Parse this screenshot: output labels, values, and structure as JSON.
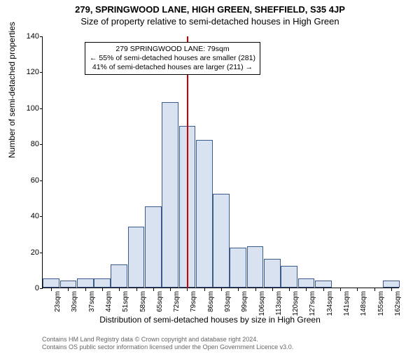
{
  "title_main": "279, SPRINGWOOD LANE, HIGH GREEN, SHEFFIELD, S35 4JP",
  "title_sub": "Size of property relative to semi-detached houses in High Green",
  "ylabel": "Number of semi-detached properties",
  "xlabel": "Distribution of semi-detached houses by size in High Green",
  "footer_line1": "Contains HM Land Registry data © Crown copyright and database right 2024.",
  "footer_line2": "Contains OS public sector information licensed under the Open Government Licence v3.0.",
  "chart": {
    "type": "histogram",
    "ylim": [
      0,
      140
    ],
    "ytick_step": 20,
    "yticks": [
      0,
      20,
      40,
      60,
      80,
      100,
      120,
      140
    ],
    "x_categories": [
      "23sqm",
      "30sqm",
      "37sqm",
      "44sqm",
      "51sqm",
      "58sqm",
      "65sqm",
      "72sqm",
      "79sqm",
      "86sqm",
      "93sqm",
      "99sqm",
      "106sqm",
      "113sqm",
      "120sqm",
      "127sqm",
      "134sqm",
      "141sqm",
      "148sqm",
      "155sqm",
      "162sqm"
    ],
    "bar_values": [
      5,
      4,
      5,
      5,
      13,
      34,
      45,
      103,
      90,
      82,
      52,
      22,
      23,
      16,
      12,
      5,
      4,
      0,
      0,
      0,
      4
    ],
    "bar_fill": "#d8e2f0",
    "bar_border": "#3a5a8a",
    "background": "#ffffff",
    "refline_color": "#cc0000",
    "refline_x_index": 8,
    "annotation": {
      "line1": "279 SPRINGWOOD LANE: 79sqm",
      "line2": "← 55% of semi-detached houses are smaller (281)",
      "line3": "41% of semi-detached houses are larger (211) →"
    },
    "title_fontsize": 13,
    "label_fontsize": 12,
    "tick_fontsize": 10
  }
}
